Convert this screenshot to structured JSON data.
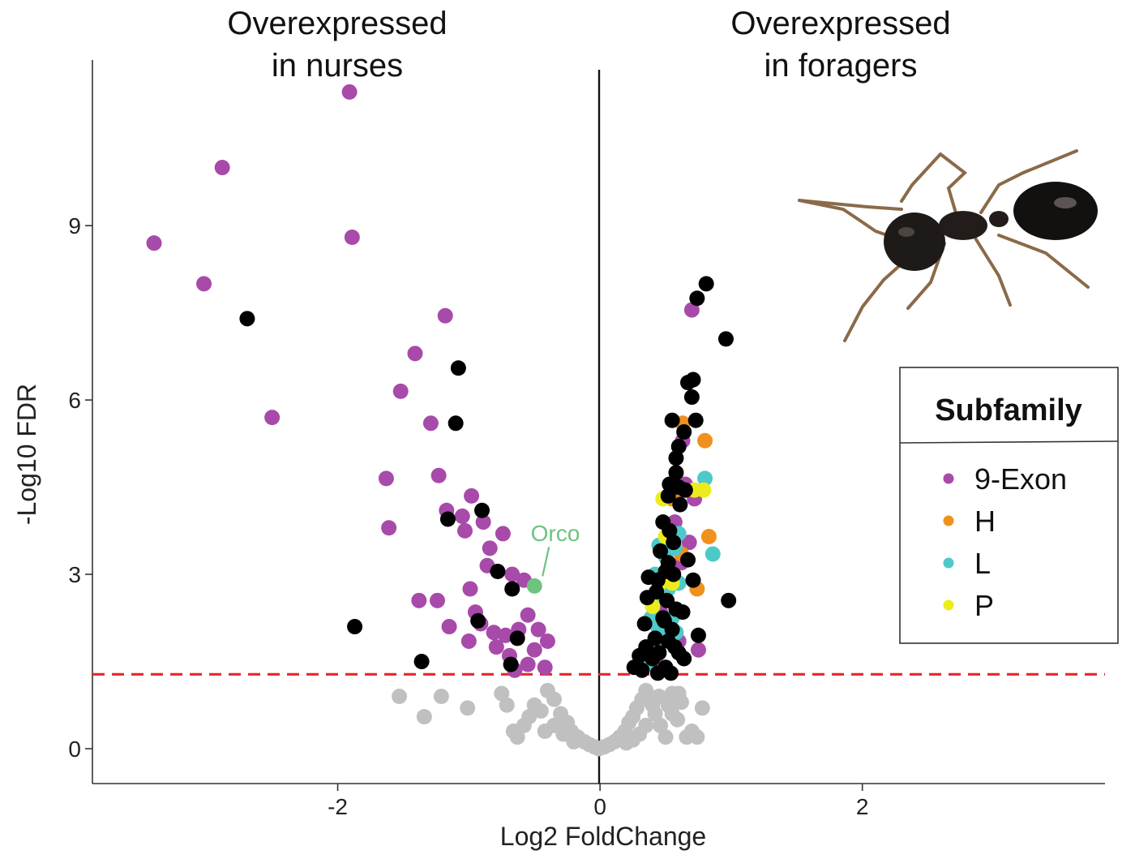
{
  "chart_data": {
    "type": "scatter",
    "xlabel": "Log2 FoldChange",
    "ylabel": "-Log10 FDR",
    "xlim": [
      -3.87,
      3.85
    ],
    "ylim": [
      -0.6,
      11.85
    ],
    "x_ticks": [
      -2,
      0,
      2
    ],
    "x_tick_labels": [
      "-2",
      "0",
      "2"
    ],
    "y_ticks": [
      0,
      3,
      6,
      9
    ],
    "y_tick_labels": [
      "0",
      "3",
      "6",
      "9"
    ],
    "grid": false,
    "threshold_y": 1.28,
    "threshold_color": "#e8262b",
    "header_left": [
      "Overexpressed",
      "in nurses"
    ],
    "header_right": [
      "Overexpressed",
      "in foragers"
    ],
    "annotation": {
      "text": "Orco",
      "x": -0.5,
      "y": 2.8,
      "color": "#6cc47f"
    },
    "legend": {
      "title": "Subfamily",
      "position": "right",
      "entries": [
        {
          "label": "9-Exon",
          "color": "#a84aaa"
        },
        {
          "label": "H",
          "color": "#f0901d"
        },
        {
          "label": "L",
          "color": "#4ec9c9"
        },
        {
          "label": "P",
          "color": "#ecec1c"
        }
      ]
    },
    "image": "ant-photo",
    "series": [
      {
        "key": "ns",
        "color": "#c0c0c0",
        "points": [
          [
            -1.53,
            0.9
          ],
          [
            -1.34,
            0.55
          ],
          [
            -1.21,
            0.9
          ],
          [
            -1.01,
            0.7
          ],
          [
            -0.75,
            0.95
          ],
          [
            -0.71,
            0.75
          ],
          [
            -0.66,
            0.3
          ],
          [
            -0.63,
            0.2
          ],
          [
            -0.54,
            0.55
          ],
          [
            -0.5,
            0.75
          ],
          [
            -0.45,
            0.65
          ],
          [
            -0.4,
            1.0
          ],
          [
            -0.35,
            0.85
          ],
          [
            -0.3,
            0.6
          ],
          [
            -0.25,
            0.45
          ],
          [
            -0.22,
            0.3
          ],
          [
            -0.17,
            0.2
          ],
          [
            -0.12,
            0.12
          ],
          [
            -0.08,
            0.07
          ],
          [
            -0.04,
            0.03
          ],
          [
            -0.01,
            0.0
          ],
          [
            0.03,
            0.03
          ],
          [
            0.07,
            0.07
          ],
          [
            0.11,
            0.12
          ],
          [
            0.15,
            0.2
          ],
          [
            0.19,
            0.3
          ],
          [
            0.22,
            0.45
          ],
          [
            0.25,
            0.55
          ],
          [
            0.28,
            0.7
          ],
          [
            0.32,
            0.85
          ],
          [
            0.35,
            1.0
          ],
          [
            0.38,
            0.85
          ],
          [
            0.42,
            0.6
          ],
          [
            0.46,
            0.4
          ],
          [
            0.5,
            0.2
          ],
          [
            0.55,
            0.6
          ],
          [
            0.59,
            0.5
          ],
          [
            0.62,
            0.8
          ],
          [
            0.66,
            0.2
          ],
          [
            0.7,
            0.3
          ],
          [
            0.74,
            0.2
          ],
          [
            0.78,
            0.7
          ],
          [
            0.55,
            0.95
          ],
          [
            0.45,
            0.9
          ],
          [
            0.4,
            0.75
          ],
          [
            0.35,
            0.4
          ],
          [
            0.3,
            0.25
          ],
          [
            0.25,
            0.15
          ],
          [
            -0.35,
            0.4
          ],
          [
            -0.28,
            0.25
          ],
          [
            -0.58,
            0.4
          ],
          [
            -0.42,
            0.3
          ],
          [
            -0.2,
            0.12
          ],
          [
            0.2,
            0.1
          ],
          [
            0.6,
            0.95
          ],
          [
            0.52,
            0.75
          ]
        ]
      },
      {
        "key": "exon9",
        "color": "#a84aaa",
        "points": [
          [
            -1.91,
            11.3
          ],
          [
            -2.88,
            10.0
          ],
          [
            -3.4,
            8.7
          ],
          [
            -1.89,
            8.8
          ],
          [
            -3.02,
            8.0
          ],
          [
            -2.5,
            5.7
          ],
          [
            -1.18,
            7.45
          ],
          [
            -1.41,
            6.8
          ],
          [
            -1.52,
            6.15
          ],
          [
            -1.29,
            5.6
          ],
          [
            -1.63,
            4.65
          ],
          [
            -1.61,
            3.8
          ],
          [
            -1.23,
            4.7
          ],
          [
            -0.98,
            4.35
          ],
          [
            -1.17,
            4.1
          ],
          [
            -1.05,
            4.0
          ],
          [
            -1.03,
            3.75
          ],
          [
            -0.89,
            3.9
          ],
          [
            -0.84,
            3.45
          ],
          [
            -0.86,
            3.15
          ],
          [
            -0.74,
            3.7
          ],
          [
            -0.67,
            3.0
          ],
          [
            -0.58,
            2.9
          ],
          [
            -0.99,
            2.75
          ],
          [
            -1.38,
            2.55
          ],
          [
            -1.24,
            2.55
          ],
          [
            -0.95,
            2.35
          ],
          [
            -0.91,
            2.15
          ],
          [
            -1.15,
            2.1
          ],
          [
            -1.0,
            1.85
          ],
          [
            -0.81,
            2.0
          ],
          [
            -0.79,
            1.75
          ],
          [
            -0.72,
            1.95
          ],
          [
            -0.69,
            1.6
          ],
          [
            -0.62,
            2.05
          ],
          [
            -0.55,
            2.3
          ],
          [
            -0.47,
            2.05
          ],
          [
            -0.4,
            1.85
          ],
          [
            -0.5,
            1.7
          ],
          [
            -0.42,
            1.4
          ],
          [
            -0.55,
            1.45
          ],
          [
            -0.65,
            1.35
          ],
          [
            0.7,
            7.55
          ],
          [
            0.63,
            5.3
          ],
          [
            0.65,
            4.55
          ],
          [
            0.58,
            4.3
          ],
          [
            0.72,
            4.3
          ],
          [
            0.68,
            3.55
          ],
          [
            0.57,
            3.9
          ],
          [
            0.62,
            3.2
          ],
          [
            0.46,
            2.35
          ],
          [
            0.5,
            1.95
          ],
          [
            0.6,
            1.85
          ],
          [
            0.75,
            1.7
          ],
          [
            0.35,
            1.5
          ],
          [
            0.45,
            1.4
          ]
        ]
      },
      {
        "key": "H",
        "color": "#f0901d",
        "points": [
          [
            0.63,
            5.6
          ],
          [
            0.8,
            5.3
          ],
          [
            0.83,
            3.65
          ],
          [
            0.74,
            2.75
          ],
          [
            0.55,
            4.3
          ],
          [
            0.62,
            3.35
          ]
        ]
      },
      {
        "key": "L",
        "color": "#4ec9c9",
        "points": [
          [
            0.8,
            4.65
          ],
          [
            0.86,
            3.35
          ],
          [
            0.41,
            1.8
          ],
          [
            0.49,
            1.95
          ],
          [
            0.39,
            2.25
          ],
          [
            0.47,
            2.6
          ],
          [
            0.52,
            2.75
          ],
          [
            0.42,
            3.0
          ],
          [
            0.5,
            3.3
          ],
          [
            0.57,
            3.45
          ],
          [
            0.6,
            3.7
          ],
          [
            0.37,
            1.45
          ],
          [
            0.55,
            2.25
          ],
          [
            0.45,
            3.5
          ],
          [
            0.6,
            2.85
          ],
          [
            0.44,
            2.1
          ],
          [
            0.58,
            2.0
          ]
        ]
      },
      {
        "key": "P",
        "color": "#ecec1c",
        "points": [
          [
            0.48,
            4.3
          ],
          [
            0.72,
            4.45
          ],
          [
            0.79,
            4.45
          ],
          [
            0.5,
            3.65
          ],
          [
            0.4,
            2.45
          ],
          [
            0.55,
            2.85
          ],
          [
            0.46,
            2.85
          ]
        ]
      },
      {
        "key": "other",
        "color": "#000000",
        "points": [
          [
            -2.69,
            7.4
          ],
          [
            -1.08,
            6.55
          ],
          [
            -1.1,
            5.6
          ],
          [
            -0.9,
            4.1
          ],
          [
            -1.16,
            3.95
          ],
          [
            -0.78,
            3.05
          ],
          [
            -0.67,
            2.75
          ],
          [
            -1.87,
            2.1
          ],
          [
            -0.63,
            1.9
          ],
          [
            -0.68,
            1.45
          ],
          [
            -1.36,
            1.5
          ],
          [
            -0.93,
            2.2
          ],
          [
            0.81,
            8.0
          ],
          [
            0.74,
            7.75
          ],
          [
            0.96,
            7.05
          ],
          [
            0.67,
            6.3
          ],
          [
            0.71,
            6.35
          ],
          [
            0.7,
            6.05
          ],
          [
            0.55,
            5.65
          ],
          [
            0.73,
            5.65
          ],
          [
            0.64,
            5.45
          ],
          [
            0.6,
            5.2
          ],
          [
            0.58,
            5.0
          ],
          [
            0.58,
            4.75
          ],
          [
            0.53,
            4.55
          ],
          [
            0.6,
            4.5
          ],
          [
            0.65,
            4.45
          ],
          [
            0.52,
            4.35
          ],
          [
            0.61,
            4.2
          ],
          [
            0.48,
            3.9
          ],
          [
            0.53,
            3.75
          ],
          [
            0.56,
            3.55
          ],
          [
            0.46,
            3.4
          ],
          [
            0.52,
            3.2
          ],
          [
            0.5,
            3.05
          ],
          [
            0.37,
            2.95
          ],
          [
            0.44,
            2.9
          ],
          [
            0.56,
            3.0
          ],
          [
            0.67,
            3.25
          ],
          [
            0.71,
            2.9
          ],
          [
            0.43,
            2.7
          ],
          [
            0.36,
            2.6
          ],
          [
            0.51,
            2.55
          ],
          [
            0.58,
            2.4
          ],
          [
            0.63,
            2.35
          ],
          [
            0.49,
            2.2
          ],
          [
            0.34,
            2.15
          ],
          [
            0.42,
            1.9
          ],
          [
            0.52,
            1.85
          ],
          [
            0.57,
            1.75
          ],
          [
            0.35,
            1.75
          ],
          [
            0.3,
            1.6
          ],
          [
            0.4,
            1.55
          ],
          [
            0.45,
            1.65
          ],
          [
            0.5,
            1.4
          ],
          [
            0.26,
            1.4
          ],
          [
            0.32,
            1.35
          ],
          [
            0.37,
            1.65
          ],
          [
            0.6,
            1.65
          ],
          [
            0.75,
            1.95
          ],
          [
            0.98,
            2.55
          ],
          [
            0.48,
            2.25
          ],
          [
            0.55,
            2.05
          ],
          [
            0.64,
            1.55
          ],
          [
            0.54,
            1.3
          ],
          [
            0.44,
            1.3
          ]
        ]
      }
    ]
  }
}
